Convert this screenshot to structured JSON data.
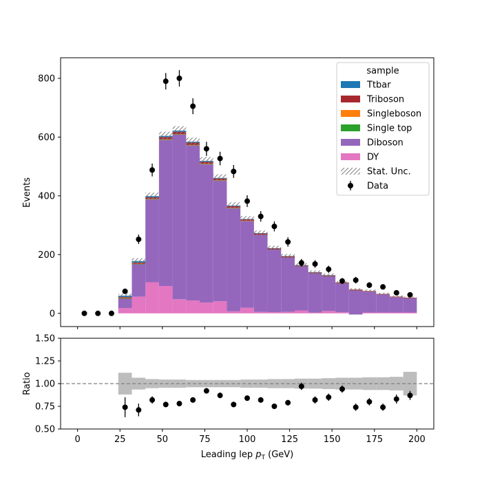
{
  "chart_data": [
    {
      "panel": "main",
      "type": "bar",
      "stacked": true,
      "histtype": "stepfilled",
      "ylabel": "Events",
      "xlim": [
        -10,
        210
      ],
      "ylim": [
        -45,
        870
      ],
      "xticks": [
        0,
        25,
        50,
        75,
        100,
        125,
        150,
        175,
        200
      ],
      "yticks": [
        0,
        200,
        400,
        600,
        800
      ],
      "bin_edges": [
        0,
        8,
        16,
        24,
        32,
        40,
        48,
        56,
        64,
        72,
        80,
        88,
        96,
        104,
        112,
        120,
        128,
        136,
        144,
        152,
        160,
        168,
        176,
        184,
        192,
        200
      ],
      "legend": {
        "title": "sample",
        "location": "top-right",
        "entries": [
          "Ttbar",
          "Triboson",
          "Singleboson",
          "Single top",
          "Diboson",
          "DY",
          "Stat. Unc.",
          "Data"
        ]
      },
      "series": [
        {
          "name": "DY",
          "color": "#e377c2",
          "values": [
            0,
            0,
            0,
            18,
            57,
            106,
            93,
            48,
            44,
            37,
            41,
            7,
            19,
            5,
            4,
            5,
            10,
            3,
            8,
            4,
            -4,
            3,
            3,
            3,
            3
          ]
        },
        {
          "name": "Diboson",
          "color": "#9467bd",
          "values": [
            0,
            0,
            0,
            32,
            110,
            282,
            497,
            560,
            527,
            470,
            410,
            350,
            295,
            262,
            213,
            185,
            150,
            133,
            118,
            98,
            82,
            71,
            61,
            52,
            48
          ]
        },
        {
          "name": "Single top",
          "color": "#2ca02c",
          "values": [
            0,
            0,
            0,
            1,
            1,
            1,
            1,
            1,
            1,
            1,
            1,
            1,
            0,
            0,
            0,
            0,
            0,
            0,
            0,
            0,
            0,
            0,
            0,
            0,
            0
          ]
        },
        {
          "name": "Singleboson",
          "color": "#ff7f0e",
          "values": [
            0,
            0,
            0,
            1,
            1,
            1,
            1,
            1,
            1,
            1,
            1,
            1,
            1,
            0,
            0,
            0,
            0,
            0,
            0,
            0,
            0,
            0,
            0,
            0,
            0
          ]
        },
        {
          "name": "Triboson",
          "color": "#a6282e",
          "values": [
            0,
            0,
            0,
            3,
            4,
            5,
            8,
            8,
            8,
            7,
            6,
            6,
            5,
            5,
            4,
            4,
            3,
            3,
            3,
            3,
            3,
            2,
            2,
            2,
            2
          ]
        },
        {
          "name": "Ttbar",
          "color": "#1f77b4",
          "values": [
            0,
            0,
            0,
            5,
            5,
            4,
            4,
            4,
            3,
            3,
            2,
            2,
            1,
            1,
            1,
            1,
            1,
            1,
            1,
            0,
            0,
            0,
            0,
            0,
            0
          ]
        }
      ],
      "stat_unc": {
        "name": "Stat. Unc.",
        "color": "#7f7f7f",
        "values": [
          0,
          0,
          0,
          7,
          10,
          12,
          14,
          15,
          14,
          13,
          12,
          11,
          10,
          9,
          8,
          7,
          7,
          6,
          6,
          5,
          5,
          5,
          4,
          4,
          4
        ]
      },
      "data": {
        "name": "Data",
        "color": "#000000",
        "x": [
          4,
          12,
          20,
          28,
          36,
          44,
          52,
          60,
          68,
          76,
          84,
          92,
          100,
          108,
          116,
          124,
          132,
          140,
          148,
          156,
          164,
          172,
          180,
          188,
          196
        ],
        "y": [
          0,
          0,
          0,
          75,
          252,
          488,
          790,
          800,
          705,
          560,
          527,
          483,
          382,
          330,
          296,
          243,
          172,
          168,
          150,
          110,
          113,
          96,
          90,
          70,
          63
        ],
        "yerr": [
          0,
          0,
          0,
          9,
          16,
          22,
          28,
          28,
          27,
          24,
          23,
          22,
          20,
          18,
          17,
          16,
          13,
          13,
          12,
          10,
          11,
          10,
          9,
          8,
          8
        ]
      }
    },
    {
      "panel": "ratio",
      "type": "scatter",
      "xlabel": "Leading lep p_T (GeV)",
      "xlabel_base": "Leading lep ",
      "xlabel_var": "p",
      "xlabel_sub": "T",
      "xlabel_unit": " (GeV)",
      "ylabel": "Ratio",
      "xlim": [
        -10,
        210
      ],
      "ylim": [
        0.5,
        1.5
      ],
      "yticks": [
        "0.50",
        "0.75",
        "1.00",
        "1.25",
        "1.50"
      ],
      "xticks": [
        0,
        25,
        50,
        75,
        100,
        125,
        150,
        175,
        200
      ],
      "reference_line": 1.0,
      "band": {
        "color": "#bdbdbd",
        "half_width": [
          0,
          0,
          0,
          0.12,
          0.065,
          0.05,
          0.045,
          0.045,
          0.04,
          0.04,
          0.04,
          0.04,
          0.045,
          0.045,
          0.05,
          0.05,
          0.055,
          0.055,
          0.06,
          0.065,
          0.065,
          0.07,
          0.07,
          0.075,
          0.13
        ]
      },
      "points": {
        "x": [
          28,
          36,
          44,
          52,
          60,
          68,
          76,
          84,
          92,
          100,
          108,
          116,
          124,
          132,
          140,
          148,
          156,
          164,
          172,
          180,
          188,
          196
        ],
        "y": [
          0.74,
          0.71,
          0.82,
          0.77,
          0.78,
          0.82,
          0.92,
          0.87,
          0.77,
          0.84,
          0.82,
          0.75,
          0.79,
          0.97,
          0.82,
          0.85,
          0.94,
          0.74,
          0.8,
          0.74,
          0.83,
          0.87
        ],
        "yerr": [
          0.11,
          0.07,
          0.04,
          0.03,
          0.03,
          0.03,
          0.03,
          0.03,
          0.03,
          0.03,
          0.03,
          0.03,
          0.03,
          0.04,
          0.04,
          0.04,
          0.04,
          0.04,
          0.04,
          0.04,
          0.05,
          0.05
        ]
      }
    }
  ]
}
